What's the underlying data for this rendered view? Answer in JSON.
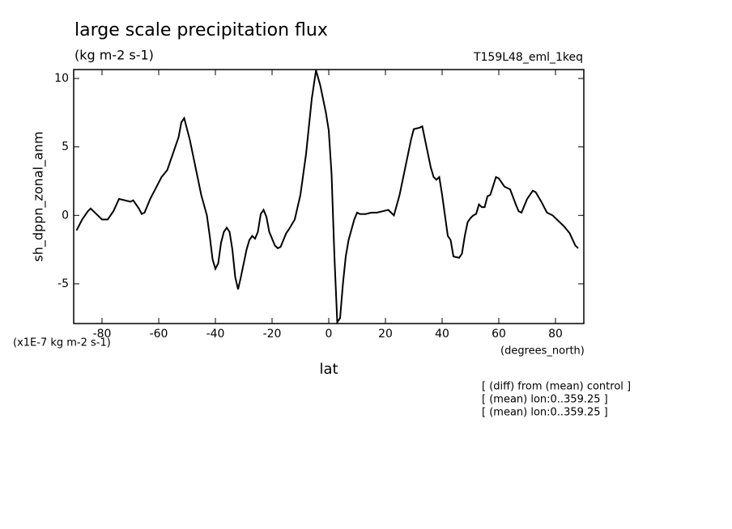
{
  "chart_data": {
    "type": "line",
    "title": "large scale precipitation flux",
    "subtitle": "(kg m-2 s-1)",
    "experiment": "T159L48_eml_1keq",
    "y_label": "sh_dppn_zonal_anm",
    "x_label": "lat",
    "y_unit": "(x1E-7 kg m-2 s-1)",
    "x_unit": "(degrees_north)",
    "notes": [
      "[ (diff) from (mean) control ]",
      "[ (mean) lon:0..359.25 ]",
      "[ (mean) lon:0..359.25 ]"
    ],
    "xlim": [
      -90,
      90
    ],
    "ylim": [
      -7.9,
      10.65
    ],
    "xticks": [
      -80,
      -60,
      -40,
      -20,
      0,
      20,
      40,
      60,
      80
    ],
    "yticks": [
      -5,
      0,
      5,
      10
    ],
    "series": [
      {
        "color": "#000000",
        "x": [
          -89,
          -87,
          -85,
          -84,
          -82,
          -80,
          -78,
          -76,
          -74,
          -72,
          -70,
          -69,
          -67,
          -66,
          -65,
          -63,
          -61,
          -59,
          -57,
          -55,
          -53,
          -52,
          -51,
          -49,
          -47,
          -45,
          -43,
          -42,
          -41,
          -40,
          -39,
          -38,
          -37,
          -36,
          -35,
          -34,
          -33,
          -32,
          -31,
          -29,
          -28,
          -27,
          -26,
          -25,
          -24,
          -23,
          -22,
          -21,
          -19,
          -18,
          -17,
          -16,
          -15,
          -14,
          -12,
          -10,
          -8,
          -6,
          -4.5,
          -3,
          -1,
          0,
          1,
          2,
          3,
          4,
          5,
          6,
          7,
          9,
          10,
          11,
          13,
          15,
          17,
          19,
          21,
          23,
          25,
          27,
          29,
          30,
          32,
          33,
          34,
          36,
          37,
          38,
          39,
          40,
          41,
          42,
          43,
          44,
          46,
          47,
          48,
          49,
          50,
          51,
          52,
          53,
          54,
          55,
          56,
          57,
          59,
          60,
          62,
          64,
          66,
          67,
          68,
          70,
          72,
          73,
          75,
          77,
          79,
          81,
          83,
          85,
          87,
          88
        ],
        "values": [
          -1.1,
          -0.3,
          0.3,
          0.5,
          0.1,
          -0.3,
          -0.3,
          0.3,
          1.2,
          1.1,
          1.0,
          1.1,
          0.5,
          0.1,
          0.2,
          1.2,
          2.0,
          2.8,
          3.3,
          4.5,
          5.7,
          6.8,
          7.1,
          5.5,
          3.5,
          1.5,
          0,
          -1.5,
          -3.2,
          -3.9,
          -3.5,
          -2,
          -1.2,
          -0.9,
          -1.2,
          -2.5,
          -4.5,
          -5.4,
          -4.5,
          -2.5,
          -1.8,
          -1.5,
          -1.7,
          -1.2,
          0.1,
          0.4,
          -0.1,
          -1.2,
          -2.2,
          -2.4,
          -2.3,
          -1.8,
          -1.3,
          -1.0,
          -0.3,
          1.5,
          4.5,
          8.5,
          10.6,
          9.5,
          7.5,
          6.2,
          3,
          -3,
          -7.8,
          -7.5,
          -5,
          -3,
          -1.8,
          -0.3,
          0.2,
          0.1,
          0.1,
          0.2,
          0.2,
          0.3,
          0.4,
          0,
          1.5,
          3.5,
          5.5,
          6.3,
          6.4,
          6.5,
          5.5,
          3.5,
          2.8,
          2.6,
          2.8,
          1.5,
          0,
          -1.5,
          -1.8,
          -3,
          -3.1,
          -2.8,
          -1.5,
          -0.5,
          -0.2,
          0,
          0.1,
          0.8,
          0.6,
          0.6,
          1.4,
          1.5,
          2.8,
          2.7,
          2.1,
          1.9,
          0.8,
          0.3,
          0.2,
          1.2,
          1.8,
          1.7,
          1.0,
          0.2,
          0,
          -0.4,
          -0.8,
          -1.3,
          -2.2,
          -2.4
        ]
      }
    ]
  }
}
